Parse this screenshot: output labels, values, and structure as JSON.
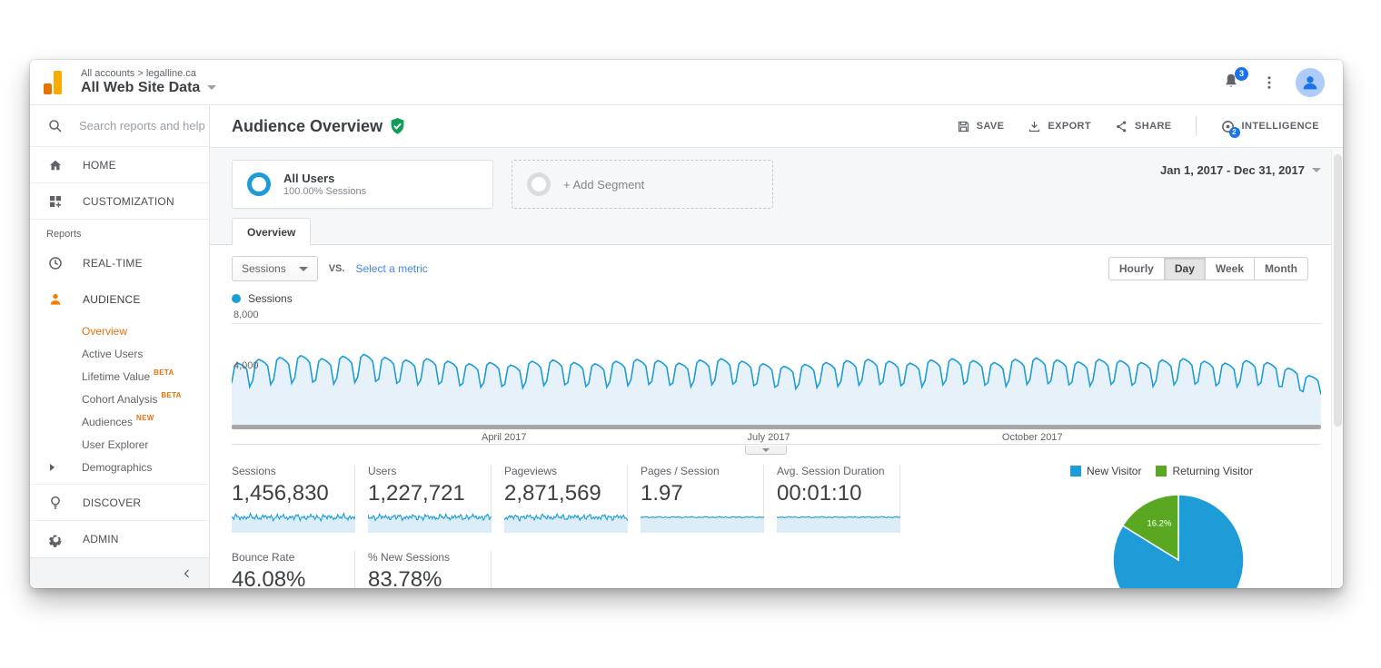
{
  "topbar": {
    "breadcrumb": "All accounts > legalline.ca",
    "title": "All Web Site Data",
    "notifications_badge": "3"
  },
  "sidebar": {
    "search_placeholder": "Search reports and help",
    "items": [
      {
        "label": "HOME"
      },
      {
        "label": "CUSTOMIZATION"
      }
    ],
    "section_label": "Reports",
    "report_items": [
      {
        "label": "REAL-TIME"
      },
      {
        "label": "AUDIENCE"
      }
    ],
    "audience_submenu": [
      {
        "label": "Overview",
        "active": true
      },
      {
        "label": "Active Users"
      },
      {
        "label": "Lifetime Value",
        "badge": "BETA"
      },
      {
        "label": "Cohort Analysis",
        "badge": "BETA"
      },
      {
        "label": "Audiences",
        "badge": "NEW"
      },
      {
        "label": "User Explorer"
      },
      {
        "label": "Demographics",
        "expandable": true
      }
    ],
    "bottom_items": [
      {
        "label": "DISCOVER"
      },
      {
        "label": "ADMIN"
      }
    ]
  },
  "report": {
    "title": "Audience Overview",
    "actions": [
      {
        "label": "SAVE"
      },
      {
        "label": "EXPORT"
      },
      {
        "label": "SHARE"
      },
      {
        "label": "INTELLIGENCE",
        "badge": "2"
      }
    ]
  },
  "segments": {
    "all_users": {
      "name": "All Users",
      "detail": "100.00% Sessions"
    },
    "add_label": "+ Add Segment",
    "date_range": "Jan 1, 2017 - Dec 31, 2017"
  },
  "tabs": {
    "overview": "Overview"
  },
  "controls": {
    "metric_selected": "Sessions",
    "vs_label": "VS.",
    "select_metric_label": "Select a metric",
    "granularity": [
      "Hourly",
      "Day",
      "Week",
      "Month"
    ],
    "granularity_active": "Day",
    "chart_legend": "Sessions"
  },
  "metrics": {
    "cards": [
      {
        "label": "Sessions",
        "value": "1,456,830",
        "sparkline": "noisy"
      },
      {
        "label": "Users",
        "value": "1,227,721",
        "sparkline": "noisy"
      },
      {
        "label": "Pageviews",
        "value": "2,871,569",
        "sparkline": "noisy"
      },
      {
        "label": "Pages / Session",
        "value": "1.97",
        "sparkline": "smooth"
      },
      {
        "label": "Avg. Session Duration",
        "value": "00:01:10",
        "sparkline": "smooth"
      },
      {
        "label": "Bounce Rate",
        "value": "46.08%",
        "sparkline": "smooth"
      },
      {
        "label": "% New Sessions",
        "value": "83.78%",
        "sparkline": "smooth"
      }
    ]
  },
  "chart_data": [
    {
      "id": "sessions-over-time",
      "type": "line",
      "title": "Sessions",
      "legend": [
        "Sessions"
      ],
      "grid": "horizontal",
      "color": "#1b9dd9",
      "fill": "#e7f1f9",
      "x_axis": {
        "unit": "day",
        "range": [
          "Jan 1, 2017",
          "Dec 31, 2017"
        ],
        "tick_labels": [
          "April 2017",
          "July 2017",
          "October 2017"
        ],
        "tick_positions": [
          0.25,
          0.493,
          0.735
        ]
      },
      "y_axis": {
        "ylim": [
          0,
          8000
        ],
        "ticks": [
          4000,
          8000
        ],
        "tick_labels": [
          "4,000",
          "8,000"
        ]
      },
      "series": [
        {
          "name": "Sessions",
          "points": 364,
          "annual_total": "1,456,830",
          "weekly_template_sun_to_sat": [
            3350,
            4750,
            4950,
            4850,
            4700,
            4450,
            3050
          ],
          "week_scale": [
            0.98,
            1.04,
            1.07,
            1.1,
            1.05,
            1.09,
            1.12,
            1.07,
            1.03,
            1.05,
            1.01,
            0.97,
            0.99,
            0.95,
            1.01,
            1.03,
            0.99,
            0.97,
            1.01,
            1.04,
            1.02,
            0.98,
            1.03,
            1.05,
            1.01,
            0.97,
            0.93,
            0.96,
            0.99,
            1.02,
            1.04,
            1.01,
            0.98,
            1.03,
            1.05,
            1.02,
            0.99,
            1.04,
            1.06,
            1.03,
            1.0,
            1.04,
            1.02,
            0.99,
            1.03,
            1.05,
            1.01,
            0.98,
            1.02,
            0.99,
            0.9,
            0.78
          ]
        }
      ]
    },
    {
      "id": "visitor-type-pie",
      "type": "pie",
      "legend_position": "top",
      "slices": [
        {
          "label": "New Visitor",
          "value_pct": 83.8,
          "display": "83.8%",
          "color": "#1e9cd7"
        },
        {
          "label": "Returning Visitor",
          "value_pct": 16.2,
          "display": "16.2%",
          "color": "#5aa821"
        }
      ]
    }
  ],
  "colors": {
    "orange_accent": "#e8710a",
    "line_blue": "#1b9dd9",
    "pie_blue": "#1e9cd7",
    "pie_green": "#5aa821",
    "link_blue": "#4285f4",
    "check_green": "#0f9d58",
    "badge_blue": "#1a73e8"
  }
}
